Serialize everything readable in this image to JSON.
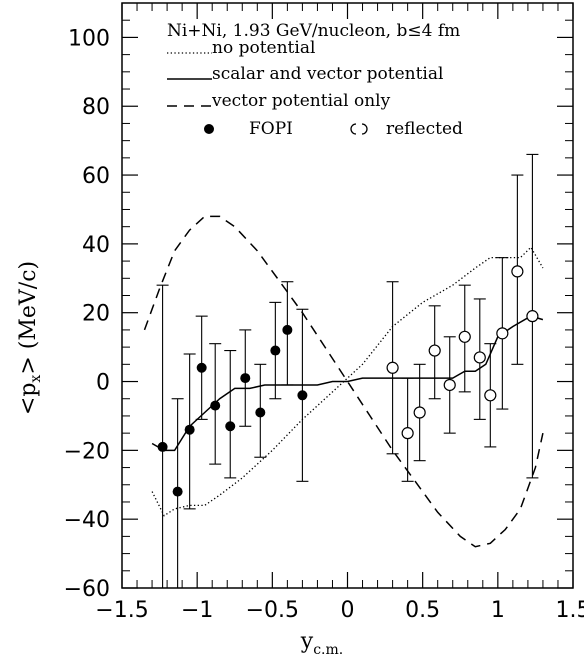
{
  "chart_data": {
    "type": "scatter",
    "title": "Ni+Ni, 1.93 GeV/nucleon, b≤4 fm",
    "xlabel_main": "y",
    "xlabel_sub": "c.m.",
    "ylabel_main": "<p",
    "ylabel_sub": "x",
    "ylabel_rest": "> (MeV/c)",
    "xlim": [
      -1.5,
      1.5
    ],
    "ylim": [
      -60,
      110
    ],
    "xticks": [
      {
        "value": -1.5,
        "label": "−1.5"
      },
      {
        "value": -1.0,
        "label": "−1"
      },
      {
        "value": -0.5,
        "label": "−0.5"
      },
      {
        "value": 0.0,
        "label": "0"
      },
      {
        "value": 0.5,
        "label": "0.5"
      },
      {
        "value": 1.0,
        "label": "1"
      },
      {
        "value": 1.5,
        "label": "1.5"
      }
    ],
    "yticks": [
      {
        "value": -60,
        "label": "−60"
      },
      {
        "value": -40,
        "label": "−40"
      },
      {
        "value": -20,
        "label": "−20"
      },
      {
        "value": 0,
        "label": "0"
      },
      {
        "value": 20,
        "label": "20"
      },
      {
        "value": 40,
        "label": "40"
      },
      {
        "value": 60,
        "label": "60"
      },
      {
        "value": 80,
        "label": "80"
      },
      {
        "value": 100,
        "label": "100"
      }
    ],
    "legend": {
      "no_potential": "no potential",
      "scalar_vector": "scalar and vector potential",
      "vector_only": "vector potential only",
      "fopi": "FOPI",
      "reflected": "reflected"
    },
    "curves": [
      {
        "key": "no_potential",
        "style": "dotted",
        "x": [
          -1.3,
          -1.22,
          -1.15,
          -1.05,
          -0.95,
          -0.85,
          -0.7,
          -0.5,
          -0.3,
          -0.1,
          0.0,
          0.1,
          0.3,
          0.5,
          0.7,
          0.85,
          0.95,
          1.05,
          1.15,
          1.22,
          1.3
        ],
        "y": [
          -32,
          -39,
          -37,
          -36,
          -36,
          -33,
          -28,
          -20,
          -11,
          -3,
          1,
          5,
          16,
          23,
          28,
          33,
          36,
          36,
          36,
          39,
          33
        ]
      },
      {
        "key": "scalar_vector",
        "style": "solid",
        "x": [
          -1.3,
          -1.22,
          -1.15,
          -1.05,
          -0.95,
          -0.85,
          -0.75,
          -0.65,
          -0.55,
          -0.45,
          -0.3,
          -0.2,
          -0.1,
          0.0,
          0.1,
          0.2,
          0.3,
          0.4,
          0.5,
          0.6,
          0.7,
          0.78,
          0.85,
          0.92,
          1.0,
          1.1,
          1.22,
          1.3
        ],
        "y": [
          -18,
          -20,
          -20,
          -13,
          -9,
          -5,
          -2,
          -2,
          -1,
          -1,
          -1,
          -1,
          0,
          0,
          1,
          1,
          1,
          1,
          1,
          1,
          1,
          3,
          3,
          5,
          13,
          16,
          19,
          18
        ]
      },
      {
        "key": "vector_only",
        "style": "dashed",
        "x": [
          -1.35,
          -1.25,
          -1.15,
          -1.05,
          -0.95,
          -0.85,
          -0.75,
          -0.6,
          -0.45,
          -0.3,
          -0.15,
          0.0,
          0.15,
          0.3,
          0.45,
          0.6,
          0.75,
          0.85,
          0.95,
          1.05,
          1.15,
          1.25,
          1.3
        ],
        "y": [
          15,
          27,
          38,
          44,
          48,
          48,
          45,
          38,
          29,
          20,
          10,
          0,
          -10,
          -20,
          -29,
          -38,
          -45,
          -48,
          -47,
          -43,
          -37,
          -25,
          -15
        ]
      }
    ],
    "fopi": [
      {
        "x": -1.23,
        "y": -19,
        "lo": -60,
        "hi": 28
      },
      {
        "x": -1.13,
        "y": -32,
        "lo": -60,
        "hi": -5
      },
      {
        "x": -1.05,
        "y": -14,
        "lo": -37,
        "hi": 8
      },
      {
        "x": -0.97,
        "y": 4,
        "lo": -11,
        "hi": 19
      },
      {
        "x": -0.88,
        "y": -7,
        "lo": -24,
        "hi": 11
      },
      {
        "x": -0.78,
        "y": -13,
        "lo": -28,
        "hi": 9
      },
      {
        "x": -0.68,
        "y": 1,
        "lo": -13,
        "hi": 15
      },
      {
        "x": -0.58,
        "y": -9,
        "lo": -22,
        "hi": 5
      },
      {
        "x": -0.48,
        "y": 9,
        "lo": -5,
        "hi": 23
      },
      {
        "x": -0.4,
        "y": 15,
        "lo": -1,
        "hi": 29
      },
      {
        "x": -0.3,
        "y": -4,
        "lo": -29,
        "hi": 21
      }
    ],
    "reflected": [
      {
        "x": 0.3,
        "y": 4,
        "lo": -21,
        "hi": 29
      },
      {
        "x": 0.4,
        "y": -15,
        "lo": -29,
        "hi": 1
      },
      {
        "x": 0.48,
        "y": -9,
        "lo": -23,
        "hi": 5
      },
      {
        "x": 0.58,
        "y": 9,
        "lo": -5,
        "hi": 22
      },
      {
        "x": 0.68,
        "y": -1,
        "lo": -15,
        "hi": 13
      },
      {
        "x": 0.78,
        "y": 13,
        "lo": -3,
        "hi": 28
      },
      {
        "x": 0.88,
        "y": 7,
        "lo": -11,
        "hi": 24
      },
      {
        "x": 0.95,
        "y": -4,
        "lo": -19,
        "hi": 11
      },
      {
        "x": 1.03,
        "y": 14,
        "lo": -8,
        "hi": 36
      },
      {
        "x": 1.13,
        "y": 32,
        "lo": 5,
        "hi": 60
      },
      {
        "x": 1.23,
        "y": 19,
        "lo": -28,
        "hi": 66
      }
    ]
  }
}
